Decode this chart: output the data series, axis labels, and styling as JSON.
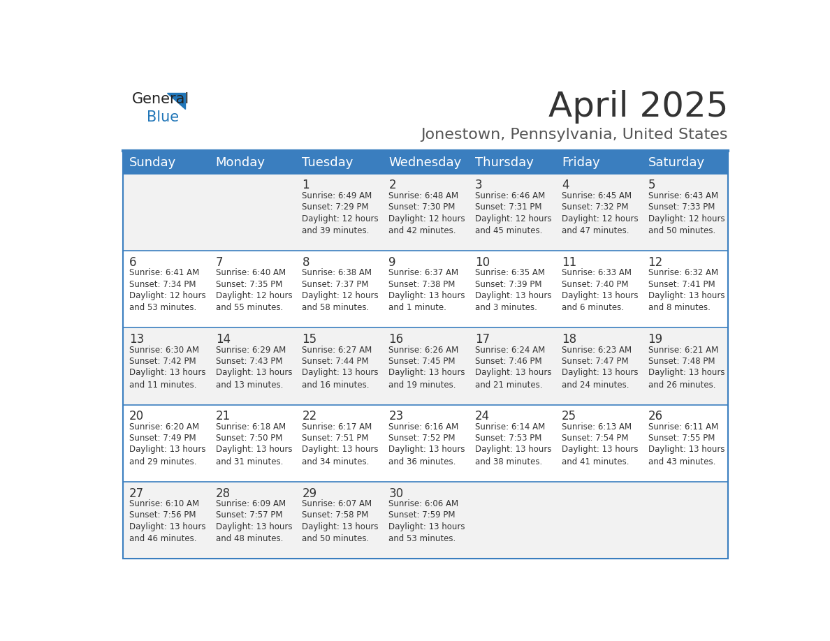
{
  "title": "April 2025",
  "subtitle": "Jonestown, Pennsylvania, United States",
  "days_of_week": [
    "Sunday",
    "Monday",
    "Tuesday",
    "Wednesday",
    "Thursday",
    "Friday",
    "Saturday"
  ],
  "header_bg": "#3a7ebf",
  "header_text": "#ffffff",
  "row_bg_even": "#f2f2f2",
  "row_bg_odd": "#ffffff",
  "border_color": "#3a7ebf",
  "text_color": "#333333",
  "title_color": "#333333",
  "subtitle_color": "#555555",
  "weeks": [
    [
      {
        "day": "",
        "sunrise": "",
        "sunset": "",
        "daylight": ""
      },
      {
        "day": "",
        "sunrise": "",
        "sunset": "",
        "daylight": ""
      },
      {
        "day": "1",
        "sunrise": "Sunrise: 6:49 AM",
        "sunset": "Sunset: 7:29 PM",
        "daylight": "Daylight: 12 hours\nand 39 minutes."
      },
      {
        "day": "2",
        "sunrise": "Sunrise: 6:48 AM",
        "sunset": "Sunset: 7:30 PM",
        "daylight": "Daylight: 12 hours\nand 42 minutes."
      },
      {
        "day": "3",
        "sunrise": "Sunrise: 6:46 AM",
        "sunset": "Sunset: 7:31 PM",
        "daylight": "Daylight: 12 hours\nand 45 minutes."
      },
      {
        "day": "4",
        "sunrise": "Sunrise: 6:45 AM",
        "sunset": "Sunset: 7:32 PM",
        "daylight": "Daylight: 12 hours\nand 47 minutes."
      },
      {
        "day": "5",
        "sunrise": "Sunrise: 6:43 AM",
        "sunset": "Sunset: 7:33 PM",
        "daylight": "Daylight: 12 hours\nand 50 minutes."
      }
    ],
    [
      {
        "day": "6",
        "sunrise": "Sunrise: 6:41 AM",
        "sunset": "Sunset: 7:34 PM",
        "daylight": "Daylight: 12 hours\nand 53 minutes."
      },
      {
        "day": "7",
        "sunrise": "Sunrise: 6:40 AM",
        "sunset": "Sunset: 7:35 PM",
        "daylight": "Daylight: 12 hours\nand 55 minutes."
      },
      {
        "day": "8",
        "sunrise": "Sunrise: 6:38 AM",
        "sunset": "Sunset: 7:37 PM",
        "daylight": "Daylight: 12 hours\nand 58 minutes."
      },
      {
        "day": "9",
        "sunrise": "Sunrise: 6:37 AM",
        "sunset": "Sunset: 7:38 PM",
        "daylight": "Daylight: 13 hours\nand 1 minute."
      },
      {
        "day": "10",
        "sunrise": "Sunrise: 6:35 AM",
        "sunset": "Sunset: 7:39 PM",
        "daylight": "Daylight: 13 hours\nand 3 minutes."
      },
      {
        "day": "11",
        "sunrise": "Sunrise: 6:33 AM",
        "sunset": "Sunset: 7:40 PM",
        "daylight": "Daylight: 13 hours\nand 6 minutes."
      },
      {
        "day": "12",
        "sunrise": "Sunrise: 6:32 AM",
        "sunset": "Sunset: 7:41 PM",
        "daylight": "Daylight: 13 hours\nand 8 minutes."
      }
    ],
    [
      {
        "day": "13",
        "sunrise": "Sunrise: 6:30 AM",
        "sunset": "Sunset: 7:42 PM",
        "daylight": "Daylight: 13 hours\nand 11 minutes."
      },
      {
        "day": "14",
        "sunrise": "Sunrise: 6:29 AM",
        "sunset": "Sunset: 7:43 PM",
        "daylight": "Daylight: 13 hours\nand 13 minutes."
      },
      {
        "day": "15",
        "sunrise": "Sunrise: 6:27 AM",
        "sunset": "Sunset: 7:44 PM",
        "daylight": "Daylight: 13 hours\nand 16 minutes."
      },
      {
        "day": "16",
        "sunrise": "Sunrise: 6:26 AM",
        "sunset": "Sunset: 7:45 PM",
        "daylight": "Daylight: 13 hours\nand 19 minutes."
      },
      {
        "day": "17",
        "sunrise": "Sunrise: 6:24 AM",
        "sunset": "Sunset: 7:46 PM",
        "daylight": "Daylight: 13 hours\nand 21 minutes."
      },
      {
        "day": "18",
        "sunrise": "Sunrise: 6:23 AM",
        "sunset": "Sunset: 7:47 PM",
        "daylight": "Daylight: 13 hours\nand 24 minutes."
      },
      {
        "day": "19",
        "sunrise": "Sunrise: 6:21 AM",
        "sunset": "Sunset: 7:48 PM",
        "daylight": "Daylight: 13 hours\nand 26 minutes."
      }
    ],
    [
      {
        "day": "20",
        "sunrise": "Sunrise: 6:20 AM",
        "sunset": "Sunset: 7:49 PM",
        "daylight": "Daylight: 13 hours\nand 29 minutes."
      },
      {
        "day": "21",
        "sunrise": "Sunrise: 6:18 AM",
        "sunset": "Sunset: 7:50 PM",
        "daylight": "Daylight: 13 hours\nand 31 minutes."
      },
      {
        "day": "22",
        "sunrise": "Sunrise: 6:17 AM",
        "sunset": "Sunset: 7:51 PM",
        "daylight": "Daylight: 13 hours\nand 34 minutes."
      },
      {
        "day": "23",
        "sunrise": "Sunrise: 6:16 AM",
        "sunset": "Sunset: 7:52 PM",
        "daylight": "Daylight: 13 hours\nand 36 minutes."
      },
      {
        "day": "24",
        "sunrise": "Sunrise: 6:14 AM",
        "sunset": "Sunset: 7:53 PM",
        "daylight": "Daylight: 13 hours\nand 38 minutes."
      },
      {
        "day": "25",
        "sunrise": "Sunrise: 6:13 AM",
        "sunset": "Sunset: 7:54 PM",
        "daylight": "Daylight: 13 hours\nand 41 minutes."
      },
      {
        "day": "26",
        "sunrise": "Sunrise: 6:11 AM",
        "sunset": "Sunset: 7:55 PM",
        "daylight": "Daylight: 13 hours\nand 43 minutes."
      }
    ],
    [
      {
        "day": "27",
        "sunrise": "Sunrise: 6:10 AM",
        "sunset": "Sunset: 7:56 PM",
        "daylight": "Daylight: 13 hours\nand 46 minutes."
      },
      {
        "day": "28",
        "sunrise": "Sunrise: 6:09 AM",
        "sunset": "Sunset: 7:57 PM",
        "daylight": "Daylight: 13 hours\nand 48 minutes."
      },
      {
        "day": "29",
        "sunrise": "Sunrise: 6:07 AM",
        "sunset": "Sunset: 7:58 PM",
        "daylight": "Daylight: 13 hours\nand 50 minutes."
      },
      {
        "day": "30",
        "sunrise": "Sunrise: 6:06 AM",
        "sunset": "Sunset: 7:59 PM",
        "daylight": "Daylight: 13 hours\nand 53 minutes."
      },
      {
        "day": "",
        "sunrise": "",
        "sunset": "",
        "daylight": ""
      },
      {
        "day": "",
        "sunrise": "",
        "sunset": "",
        "daylight": ""
      },
      {
        "day": "",
        "sunrise": "",
        "sunset": "",
        "daylight": ""
      }
    ]
  ]
}
